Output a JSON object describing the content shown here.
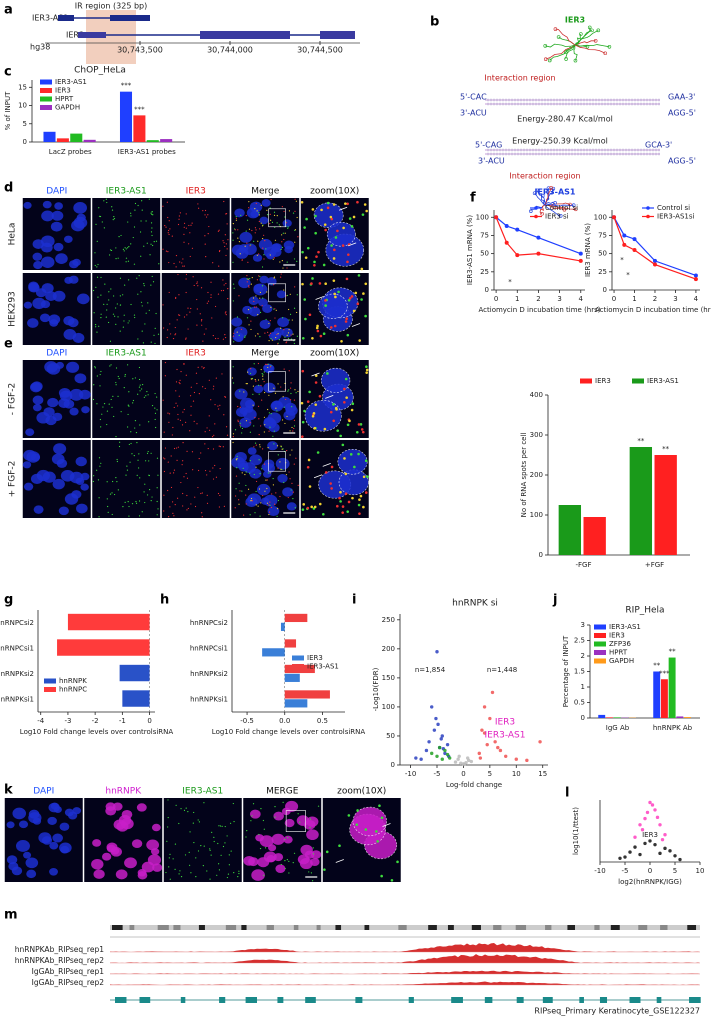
{
  "panel_labels": [
    "a",
    "b",
    "c",
    "d",
    "e",
    "f",
    "g",
    "h",
    "i",
    "j",
    "k",
    "l",
    "m"
  ],
  "panel_a": {
    "ir_region": "IR region (325 bp)",
    "genes": [
      "IER3-AS1",
      "IER3"
    ],
    "assembly": "hg38",
    "coordinates": [
      "30,743,500",
      "30,744,000",
      "30,744,500"
    ]
  },
  "panel_b": {
    "top_rna": "IER3",
    "bottom_rna": "IER3-AS1",
    "interaction_label": "Interaction region",
    "energies": [
      "Energy-280.47 Kcal/mol",
      "Energy-250.39 Kcal/mol"
    ],
    "ends": [
      "5'-CAC",
      "GAA-3'",
      "3'-ACU",
      "AGG-5'",
      "5'-CAG",
      "GCA-3'",
      "3'-ACU",
      "AGG-5'"
    ]
  },
  "panel_d": {
    "columns": [
      "DAPI",
      "IER3-AS1",
      "IER3",
      "Merge",
      "zoom(10X)"
    ],
    "rows": [
      "HeLa",
      "HEK293"
    ]
  },
  "panel_e": {
    "columns": [
      "DAPI",
      "IER3-AS1",
      "IER3",
      "Merge",
      "zoom(10X)"
    ],
    "rows": [
      "- FGF-2",
      "+ FGF-2"
    ]
  },
  "panel_k": {
    "columns": [
      "DAPI",
      "hnRNPK",
      "IER3-AS1",
      "MERGE",
      "zoom(10X)"
    ]
  },
  "panel_m": {
    "tracks": [
      "hnRNPKAb_RIPseq_rep1",
      "hnRNPKAb_RIPseq_rep2",
      "IgGAb_RIPseq_rep1",
      "IgGAb_RIPseq_rep2"
    ],
    "source": "RIPseq_Primary Keratinocyte_GSE122327"
  },
  "chart_data": [
    {
      "type": "bar",
      "title": "ChOP_HeLa",
      "ylabel": "% of INPUT",
      "categories": [
        "LacZ probes",
        "IER3-AS1 probes"
      ],
      "series": [
        {
          "name": "IER3-AS1",
          "color": "#1f3fff",
          "values": [
            2.8,
            13.8
          ]
        },
        {
          "name": "IER3",
          "color": "#ff2a2a",
          "values": [
            1.0,
            7.3
          ]
        },
        {
          "name": "HPRT",
          "color": "#22bb22",
          "values": [
            2.3,
            0.5
          ]
        },
        {
          "name": "GAPDH",
          "color": "#9b30c0",
          "values": [
            0.6,
            0.8
          ]
        }
      ],
      "ylim": [
        0,
        17
      ],
      "yticks": [
        0,
        5,
        10,
        15
      ],
      "legend": "upper left",
      "annotations": [
        "***",
        "***"
      ]
    },
    {
      "type": "bar",
      "ylabel": "No of RNA spots per cell",
      "categories": [
        "-FGF",
        "+FGF"
      ],
      "series": [
        {
          "name": "IER3",
          "color": "#ff2020",
          "values": [
            95,
            250
          ]
        },
        {
          "name": "IER3-AS1",
          "color": "#1a9a1a",
          "values": [
            125,
            270
          ]
        }
      ],
      "ylim": [
        0,
        400
      ],
      "yticks": [
        0,
        100,
        200,
        300,
        400
      ],
      "legend": "top",
      "annotations": [
        "**",
        "**"
      ]
    },
    {
      "type": "line",
      "ylabel": "IER3-AS1 mRNA (%)",
      "xlabel": "Actiomycin D incubation time (hrs)",
      "x": [
        0,
        0.5,
        1,
        2,
        4
      ],
      "series": [
        {
          "name": "Control si",
          "color": "#1f3fff",
          "values": [
            100,
            88,
            83,
            72,
            50
          ]
        },
        {
          "name": "IER3 si",
          "color": "#ff1f1f",
          "values": [
            100,
            65,
            48,
            50,
            40
          ]
        }
      ],
      "xlim": [
        -0.1,
        4.2
      ],
      "xticks": [
        0,
        1,
        2,
        3,
        4
      ],
      "ylim": [
        0,
        110
      ],
      "yticks": [
        0,
        25,
        50,
        75,
        100
      ],
      "legend": "upper right",
      "annotations": [
        "*"
      ]
    },
    {
      "type": "line",
      "ylabel": "IER3 mRNA (%)",
      "xlabel": "Actiomycin D incubation time (hrs)",
      "x": [
        0,
        0.5,
        1,
        2,
        4
      ],
      "series": [
        {
          "name": "Control si",
          "color": "#1f3fff",
          "values": [
            100,
            75,
            70,
            40,
            20
          ]
        },
        {
          "name": "IER3-AS1si",
          "color": "#ff1f1f",
          "values": [
            100,
            62,
            55,
            35,
            15
          ]
        }
      ],
      "xlim": [
        -0.1,
        4.2
      ],
      "xticks": [
        0,
        1,
        2,
        3,
        4
      ],
      "ylim": [
        0,
        110
      ],
      "yticks": [
        0,
        25,
        50,
        75,
        100
      ],
      "legend": "upper right",
      "annotations": [
        "*",
        "*"
      ]
    },
    {
      "type": "barh",
      "xlabel": "Log10 Fold change levels over controlsiRNA",
      "categories": [
        "hnRNPCsi2",
        "hnRNPCsi1",
        "hnRNPKsi2",
        "hnRNPKsi1"
      ],
      "series": [
        {
          "name": "hnRNPK",
          "color": "#2952c8",
          "values": [
            null,
            null,
            -1.1,
            -1.0
          ]
        },
        {
          "name": "hnRNPC",
          "color": "#ff3b3b",
          "values": [
            -3.0,
            -3.4,
            null,
            null
          ]
        }
      ],
      "xlim": [
        -4.1,
        0.2
      ],
      "xticks": [
        -4,
        -3,
        -2,
        -1,
        0
      ],
      "legend": "lower left"
    },
    {
      "type": "barh",
      "xlabel": "Log10 Fold change levels over controlsiRNA",
      "categories": [
        "hnRNPCsi2",
        "hnRNPCsi1",
        "hnRNPKsi2",
        "hnRNPKsi1"
      ],
      "series": [
        {
          "name": "IER3",
          "color": "#3a7fd8",
          "values": [
            -0.05,
            -0.3,
            0.2,
            0.3
          ]
        },
        {
          "name": "IER3-AS1",
          "color": "#f04040",
          "values": [
            0.3,
            0.15,
            0.4,
            0.6
          ]
        }
      ],
      "xlim": [
        -0.7,
        0.8
      ],
      "xticks": [
        -0.5,
        {
          "value": 0,
          "label": "0.0"
        },
        0.5
      ],
      "legend": "center right"
    },
    {
      "type": "scatter",
      "title": "hnRNPK si",
      "xlabel": "Log-fold change",
      "ylabel": "-Log10(FDR)",
      "series": [
        {
          "color": "#bbbbbb",
          "x": [
            -1.5,
            -1,
            -0.5,
            0,
            0.5,
            1,
            1.5,
            -0.8,
            0.8,
            0.2
          ],
          "values": [
            5,
            10,
            3,
            2,
            4,
            8,
            6,
            15,
            12,
            1
          ]
        },
        {
          "color": "#2a3fbf",
          "x": [
            -8,
            -6.5,
            -5.5,
            -5,
            -4.5,
            -4,
            -3.5,
            -3,
            -2.8,
            -6,
            -7,
            -5.2,
            -4.2,
            -3.8,
            -9,
            -4.8
          ],
          "values": [
            10,
            40,
            60,
            195,
            30,
            50,
            20,
            35,
            15,
            100,
            25,
            80,
            45,
            28,
            12,
            70
          ]
        },
        {
          "color": "#22a022",
          "x": [
            -5,
            -4,
            -3.5,
            -3,
            -4.5,
            -2.6,
            -6
          ],
          "values": [
            15,
            10,
            25,
            18,
            30,
            12,
            20
          ]
        },
        {
          "color": "#f05050",
          "x": [
            3,
            4,
            5,
            6,
            7,
            5.5,
            4.5,
            3.5,
            8,
            10,
            12,
            6.5,
            4,
            3.2,
            14.5
          ],
          "values": [
            20,
            55,
            80,
            40,
            25,
            125,
            35,
            60,
            15,
            10,
            8,
            30,
            100,
            12,
            40
          ]
        }
      ],
      "xlim": [
        -12,
        16
      ],
      "xticks": [
        -10,
        -5,
        0,
        5,
        10,
        15
      ],
      "ylim": [
        0,
        260
      ],
      "yticks": [
        0,
        50,
        100,
        150,
        200,
        250
      ],
      "annotations": [
        "n=1,854",
        "n=1,448",
        "IER3",
        "IER3-AS1"
      ]
    },
    {
      "type": "bar",
      "title": "RIP_Hela",
      "ylabel": "Percentage of INPUT",
      "categories": [
        "IgG Ab",
        "hnRNPK Ab"
      ],
      "series": [
        {
          "name": "IER3-AS1",
          "color": "#1f3fff",
          "values": [
            0.1,
            1.5
          ]
        },
        {
          "name": "IER3",
          "color": "#ff2020",
          "values": [
            0.02,
            1.25
          ]
        },
        {
          "name": "ZFP36",
          "color": "#22bb22",
          "values": [
            0.02,
            1.95
          ]
        },
        {
          "name": "HPRT",
          "color": "#9b30c0",
          "values": [
            0.01,
            0.05
          ]
        },
        {
          "name": "GAPDH",
          "color": "#ff9a1a",
          "values": [
            0.01,
            0.03
          ]
        }
      ],
      "ylim": [
        0,
        3
      ],
      "yticks": [
        0,
        0.5,
        1,
        1.5,
        2,
        2.5,
        3
      ],
      "legend": "upper left",
      "annotations": [
        "**",
        "***",
        "**"
      ]
    },
    {
      "type": "scatter",
      "xlabel": "log2(hnRNPK/IGG)",
      "ylabel": "log10(1/ttest)",
      "series": [
        {
          "color": "#111111",
          "x": [
            -6,
            -4,
            -3,
            -2,
            2,
            3,
            4,
            6,
            -1,
            1,
            0,
            -5,
            5
          ],
          "values": [
            0.3,
            0.8,
            1.2,
            0.6,
            0.7,
            1.1,
            0.9,
            0.2,
            1.5,
            1.4,
            1.7,
            0.4,
            0.5
          ]
        },
        {
          "color": "#ff3fbf",
          "x": [
            -3,
            -2,
            -1,
            1,
            2,
            3,
            -1.5,
            0.5,
            1.5,
            2.5,
            -0.5,
            0
          ],
          "values": [
            2,
            3,
            3.5,
            4.2,
            3,
            2.2,
            2.6,
            4.6,
            3.6,
            1.8,
            4,
            4.8
          ]
        }
      ],
      "xlim": [
        -10,
        10
      ],
      "xticks": [
        -10,
        -5,
        0,
        5,
        10
      ],
      "ylim": [
        0,
        5
      ],
      "annotations": [
        "IER3"
      ]
    }
  ]
}
